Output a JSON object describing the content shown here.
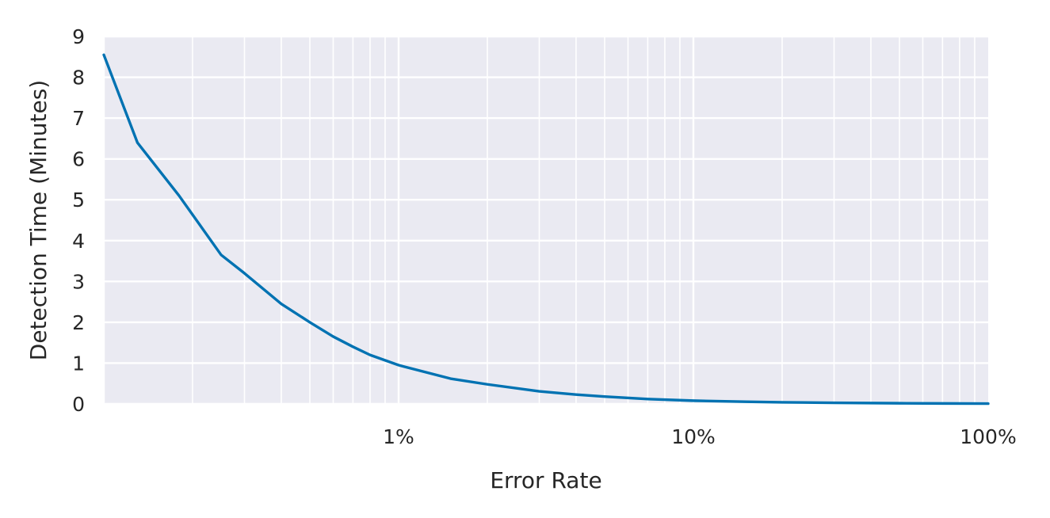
{
  "chart_data": {
    "type": "line",
    "xlabel": "Error Rate",
    "ylabel": "Detection Time (Minutes)",
    "xscale": "log",
    "xlim": [
      0.1,
      100
    ],
    "ylim": [
      0,
      9
    ],
    "x_tick_labels": [
      {
        "value": 1,
        "label": "1%"
      },
      {
        "value": 10,
        "label": "10%"
      },
      {
        "value": 100,
        "label": "100%"
      }
    ],
    "y_ticks": [
      0,
      1,
      2,
      3,
      4,
      5,
      6,
      7,
      8,
      9
    ],
    "grid": true,
    "colors": {
      "line": "#0072b2",
      "background": "#eaeaf2",
      "grid": "#ffffff"
    },
    "series": [
      {
        "x": [
          0.1,
          0.13,
          0.18,
          0.25,
          0.3,
          0.4,
          0.5,
          0.6,
          0.7,
          0.8,
          1,
          1.5,
          2,
          3,
          4,
          5,
          7,
          10,
          15,
          20,
          30,
          50,
          70,
          100
        ],
        "y": [
          8.55,
          6.4,
          5.1,
          3.65,
          3.2,
          2.45,
          2.0,
          1.65,
          1.4,
          1.2,
          0.95,
          0.62,
          0.48,
          0.31,
          0.23,
          0.18,
          0.12,
          0.08,
          0.055,
          0.04,
          0.028,
          0.017,
          0.012,
          0.008
        ]
      }
    ]
  }
}
